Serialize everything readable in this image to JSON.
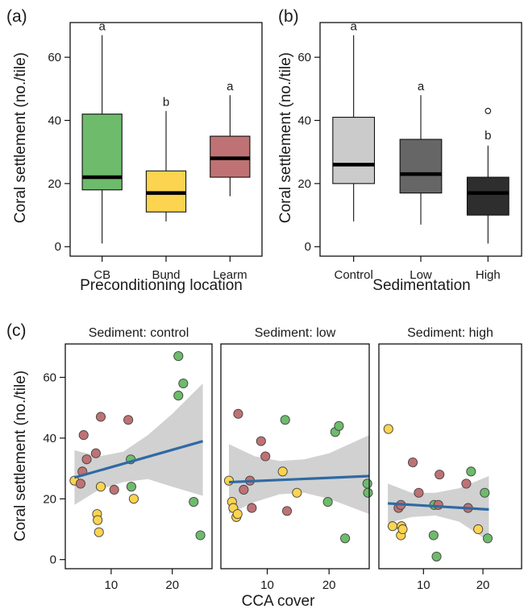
{
  "colors": {
    "CB": "#6dbb6b",
    "Bund": "#fcd44f",
    "Learm": "#bf7273",
    "sed_control": "#cbcbcb",
    "sed_low": "#666666",
    "sed_high": "#2e2e2e",
    "fit_line": "#2f6aa3",
    "ci_band": "#c9c9c9"
  },
  "chart_data": [
    {
      "panel": "(a)",
      "type": "box",
      "xlabel": "Preconditioning location",
      "ylabel": "Coral settlement (no./tile)",
      "ylim": [
        -3,
        71
      ],
      "yticks": [
        0,
        20,
        40,
        60
      ],
      "categories": [
        "CB",
        "Bund",
        "Learm"
      ],
      "boxes": [
        {
          "category": "CB",
          "whisker_low": 1,
          "q1": 18,
          "median": 22,
          "q3": 42,
          "whisker_high": 67,
          "letter": "a",
          "color_key": "CB"
        },
        {
          "category": "Bund",
          "whisker_low": 8,
          "q1": 11,
          "median": 17,
          "q3": 24,
          "whisker_high": 43,
          "letter": "b",
          "color_key": "Bund"
        },
        {
          "category": "Learm",
          "whisker_low": 16,
          "q1": 22,
          "median": 28,
          "q3": 35,
          "whisker_high": 48,
          "letter": "a",
          "color_key": "Learm"
        }
      ]
    },
    {
      "panel": "(b)",
      "type": "box",
      "xlabel": "Sedimentation",
      "ylabel": "Coral settlement (no./tile)",
      "ylim": [
        -3,
        71
      ],
      "yticks": [
        0,
        20,
        40,
        60
      ],
      "categories": [
        "Control",
        "Low",
        "High"
      ],
      "boxes": [
        {
          "category": "Control",
          "whisker_low": 8,
          "q1": 20,
          "median": 26,
          "q3": 41,
          "whisker_high": 67,
          "letter": "a",
          "color_key": "sed_control"
        },
        {
          "category": "Low",
          "whisker_low": 7,
          "q1": 17,
          "median": 23,
          "q3": 34,
          "whisker_high": 48,
          "letter": "a",
          "color_key": "sed_low"
        },
        {
          "category": "High",
          "whisker_low": 1,
          "q1": 10,
          "median": 17,
          "q3": 22,
          "whisker_high": 32,
          "letter": "b",
          "outliers": [
            43
          ],
          "color_key": "sed_high"
        }
      ]
    },
    {
      "panel": "(c)",
      "type": "scatter",
      "xlabel": "CCA cover",
      "ylabel": "Coral settlement (no./tile)",
      "xlim": [
        2.5,
        26.5
      ],
      "ylim": [
        -3,
        71
      ],
      "xticks": [
        10,
        20
      ],
      "yticks": [
        0,
        20,
        40,
        60
      ],
      "facets": [
        {
          "strip": "Sediment: control",
          "fit": {
            "x": [
              4,
              25
            ],
            "y": [
              27,
              39
            ]
          },
          "band": {
            "x": [
              4,
              8,
              12,
              16,
              20,
              25
            ],
            "upper": [
              36,
              34,
              35.5,
              41,
              48,
              58
            ],
            "lower": [
              18,
              23,
              25.5,
              26.5,
              24,
              21
            ]
          },
          "points": [
            {
              "x": 4,
              "y": 26,
              "group": "Bund"
            },
            {
              "x": 5,
              "y": 25,
              "group": "Learm"
            },
            {
              "x": 5.3,
              "y": 29,
              "group": "Learm"
            },
            {
              "x": 5.5,
              "y": 41,
              "group": "Learm"
            },
            {
              "x": 6,
              "y": 33,
              "group": "Learm"
            },
            {
              "x": 7.5,
              "y": 35,
              "group": "Learm"
            },
            {
              "x": 7.7,
              "y": 15,
              "group": "Bund"
            },
            {
              "x": 7.8,
              "y": 13,
              "group": "Bund"
            },
            {
              "x": 8,
              "y": 9,
              "group": "Bund"
            },
            {
              "x": 8.3,
              "y": 47,
              "group": "Learm"
            },
            {
              "x": 8.3,
              "y": 24,
              "group": "Bund"
            },
            {
              "x": 10.5,
              "y": 23,
              "group": "Learm"
            },
            {
              "x": 12.8,
              "y": 46,
              "group": "Learm"
            },
            {
              "x": 13.2,
              "y": 33,
              "group": "CB"
            },
            {
              "x": 13.3,
              "y": 24,
              "group": "CB"
            },
            {
              "x": 13.7,
              "y": 20,
              "group": "Bund"
            },
            {
              "x": 21,
              "y": 67,
              "group": "CB"
            },
            {
              "x": 21,
              "y": 54,
              "group": "CB"
            },
            {
              "x": 21.8,
              "y": 58,
              "group": "CB"
            },
            {
              "x": 23.5,
              "y": 19,
              "group": "CB"
            },
            {
              "x": 24.6,
              "y": 8,
              "group": "CB"
            }
          ]
        },
        {
          "strip": "Sediment: low",
          "fit": {
            "x": [
              3.8,
              26.5
            ],
            "y": [
              25.5,
              27.5
            ]
          },
          "band": {
            "x": [
              3.8,
              8,
              12,
              16,
              20,
              26.5
            ],
            "upper": [
              38,
              34,
              32.5,
              33,
              35,
              41
            ],
            "lower": [
              15,
              19,
              21.5,
              22,
              20,
              15
            ]
          },
          "points": [
            {
              "x": 3.8,
              "y": 26,
              "group": "Bund"
            },
            {
              "x": 4.3,
              "y": 19,
              "group": "Bund"
            },
            {
              "x": 4.5,
              "y": 17,
              "group": "Bund"
            },
            {
              "x": 5,
              "y": 14,
              "group": "Bund"
            },
            {
              "x": 5.2,
              "y": 15,
              "group": "Bund"
            },
            {
              "x": 5.3,
              "y": 48,
              "group": "Learm"
            },
            {
              "x": 6.2,
              "y": 23,
              "group": "Learm"
            },
            {
              "x": 7.2,
              "y": 26,
              "group": "Learm"
            },
            {
              "x": 7.5,
              "y": 17,
              "group": "Learm"
            },
            {
              "x": 9,
              "y": 39,
              "group": "Learm"
            },
            {
              "x": 9.7,
              "y": 34,
              "group": "Learm"
            },
            {
              "x": 12.5,
              "y": 29,
              "group": "Bund"
            },
            {
              "x": 12.9,
              "y": 46,
              "group": "CB"
            },
            {
              "x": 13.2,
              "y": 16,
              "group": "Learm"
            },
            {
              "x": 14.8,
              "y": 22,
              "group": "Bund"
            },
            {
              "x": 19.8,
              "y": 19,
              "group": "CB"
            },
            {
              "x": 21,
              "y": 42,
              "group": "CB"
            },
            {
              "x": 21.6,
              "y": 44,
              "group": "CB"
            },
            {
              "x": 22.6,
              "y": 7,
              "group": "CB"
            },
            {
              "x": 26.2,
              "y": 25,
              "group": "CB"
            },
            {
              "x": 26.3,
              "y": 22,
              "group": "CB"
            }
          ]
        },
        {
          "strip": "Sediment: high",
          "fit": {
            "x": [
              4,
              21
            ],
            "y": [
              18.5,
              16.5
            ]
          },
          "band": {
            "x": [
              4,
              8,
              12,
              16,
              21
            ],
            "upper": [
              25,
              22,
              22,
              23.5,
              27.5
            ],
            "lower": [
              12,
              14,
              14.5,
              12.5,
              6
            ]
          },
          "points": [
            {
              "x": 4.1,
              "y": 43,
              "group": "Bund"
            },
            {
              "x": 4.8,
              "y": 11,
              "group": "Bund"
            },
            {
              "x": 5.8,
              "y": 17,
              "group": "Learm"
            },
            {
              "x": 6.2,
              "y": 18,
              "group": "Learm"
            },
            {
              "x": 6.2,
              "y": 8,
              "group": "Bund"
            },
            {
              "x": 6.3,
              "y": 11,
              "group": "Bund"
            },
            {
              "x": 6.5,
              "y": 10,
              "group": "Bund"
            },
            {
              "x": 8.2,
              "y": 32,
              "group": "Learm"
            },
            {
              "x": 9.2,
              "y": 22,
              "group": "Learm"
            },
            {
              "x": 11.7,
              "y": 8,
              "group": "CB"
            },
            {
              "x": 11.8,
              "y": 18,
              "group": "CB"
            },
            {
              "x": 12.2,
              "y": 1,
              "group": "CB"
            },
            {
              "x": 12.5,
              "y": 18,
              "group": "Learm"
            },
            {
              "x": 12.7,
              "y": 28,
              "group": "Learm"
            },
            {
              "x": 17.2,
              "y": 25,
              "group": "Learm"
            },
            {
              "x": 17.5,
              "y": 17,
              "group": "Learm"
            },
            {
              "x": 18,
              "y": 29,
              "group": "CB"
            },
            {
              "x": 19.2,
              "y": 10,
              "group": "Bund"
            },
            {
              "x": 20.3,
              "y": 22,
              "group": "CB"
            },
            {
              "x": 20.8,
              "y": 7,
              "group": "CB"
            }
          ]
        }
      ]
    }
  ]
}
